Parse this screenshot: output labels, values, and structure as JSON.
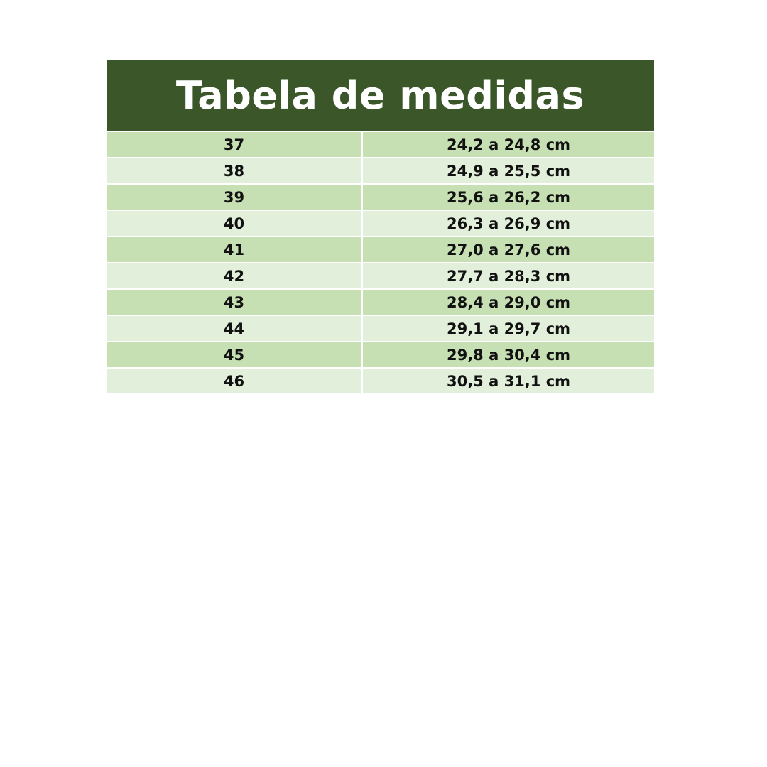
{
  "title": "Tabela de medidas",
  "colors": {
    "header": "#3b5729",
    "row_dark": "#c6e0b4",
    "row_light": "#e2efda"
  },
  "rows": [
    {
      "size": "37",
      "measure": "24,2 a 24,8 cm"
    },
    {
      "size": "38",
      "measure": "24,9 a 25,5 cm"
    },
    {
      "size": "39",
      "measure": "25,6 a 26,2 cm"
    },
    {
      "size": "40",
      "measure": "26,3 a 26,9 cm"
    },
    {
      "size": "41",
      "measure": "27,0 a 27,6 cm"
    },
    {
      "size": "42",
      "measure": "27,7 a 28,3 cm"
    },
    {
      "size": "43",
      "measure": "28,4 a 29,0 cm"
    },
    {
      "size": "44",
      "measure": "29,1 a 29,7 cm"
    },
    {
      "size": "45",
      "measure": "29,8 a 30,4 cm"
    },
    {
      "size": "46",
      "measure": "30,5 a 31,1 cm"
    }
  ]
}
